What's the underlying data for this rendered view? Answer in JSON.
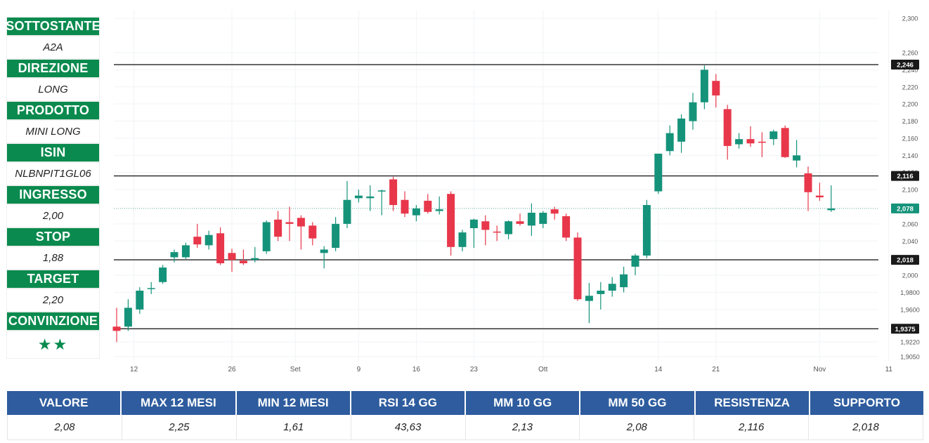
{
  "sidebar": {
    "fields": [
      {
        "label": "SOTTOSTANTE",
        "value": "A2A"
      },
      {
        "label": "DIREZIONE",
        "value": "LONG"
      },
      {
        "label": "PRODOTTO",
        "value": "MINI LONG"
      },
      {
        "label": "ISIN",
        "value": "NLBNPIT1GL06"
      },
      {
        "label": "INGRESSO",
        "value": "2,00"
      },
      {
        "label": "STOP",
        "value": "1,88"
      },
      {
        "label": "TARGET",
        "value": "2,20"
      },
      {
        "label": "CONVINZIONE",
        "value": "★★"
      }
    ]
  },
  "stats_table": {
    "headers": [
      "VALORE",
      "MAX 12 MESI",
      "MIN 12 MESI",
      "RSI 14 GG",
      "MM 10 GG",
      "MM 50 GG",
      "RESISTENZA",
      "SUPPORTO"
    ],
    "values": [
      "2,08",
      "2,25",
      "1,61",
      "43,63",
      "2,13",
      "2,08",
      "2,116",
      "2,018"
    ]
  },
  "colors": {
    "up": "#15937a",
    "down": "#e8374a",
    "header_green": "#0a8a4e",
    "header_blue": "#2e5c9e"
  },
  "chart_data": {
    "type": "candlestick",
    "x_tick_labels": [
      "12",
      "26",
      "Set",
      "9",
      "16",
      "23",
      "Ott",
      "14",
      "21",
      "Nov",
      "11"
    ],
    "y_tick_labels": [
      "2,300",
      "2,260",
      "2,240",
      "2,220",
      "2,200",
      "2,180",
      "2,160",
      "2,140",
      "2,120",
      "2,100",
      "2,060",
      "2,040",
      "2,000",
      "1,9800",
      "1,9600",
      "1,9220",
      "1,9050"
    ],
    "y_tick_values": [
      2.3,
      2.26,
      2.24,
      2.22,
      2.2,
      2.18,
      2.16,
      2.14,
      2.12,
      2.1,
      2.06,
      2.04,
      2.0,
      1.98,
      1.96,
      1.922,
      1.905
    ],
    "ylim": [
      1.9,
      2.31
    ],
    "horizontal_levels": [
      {
        "value": 2.246,
        "label": "2,246"
      },
      {
        "value": 2.116,
        "label": "2,116"
      },
      {
        "value": 2.018,
        "label": "2,018"
      },
      {
        "value": 1.9375,
        "label": "1,9375"
      }
    ],
    "last_price": {
      "value": 2.078,
      "label": "2,078"
    },
    "candles": [
      {
        "o": 1.94,
        "h": 1.962,
        "l": 1.922,
        "c": 1.935
      },
      {
        "o": 1.94,
        "h": 1.972,
        "l": 1.935,
        "c": 1.962
      },
      {
        "o": 1.96,
        "h": 1.986,
        "l": 1.955,
        "c": 1.982
      },
      {
        "o": 1.984,
        "h": 1.992,
        "l": 1.978,
        "c": 1.985
      },
      {
        "o": 1.992,
        "h": 2.012,
        "l": 1.99,
        "c": 2.009
      },
      {
        "o": 2.021,
        "h": 2.03,
        "l": 2.015,
        "c": 2.027
      },
      {
        "o": 2.021,
        "h": 2.038,
        "l": 2.019,
        "c": 2.035
      },
      {
        "o": 2.045,
        "h": 2.06,
        "l": 2.032,
        "c": 2.036
      },
      {
        "o": 2.035,
        "h": 2.052,
        "l": 2.03,
        "c": 2.047
      },
      {
        "o": 2.049,
        "h": 2.056,
        "l": 2.012,
        "c": 2.014
      },
      {
        "o": 2.026,
        "h": 2.031,
        "l": 2.004,
        "c": 2.018
      },
      {
        "o": 2.017,
        "h": 2.03,
        "l": 2.012,
        "c": 2.014
      },
      {
        "o": 2.018,
        "h": 2.033,
        "l": 2.015,
        "c": 2.02
      },
      {
        "o": 2.028,
        "h": 2.064,
        "l": 2.025,
        "c": 2.062
      },
      {
        "o": 2.065,
        "h": 2.075,
        "l": 2.04,
        "c": 2.045
      },
      {
        "o": 2.062,
        "h": 2.08,
        "l": 2.04,
        "c": 2.06
      },
      {
        "o": 2.067,
        "h": 2.07,
        "l": 2.03,
        "c": 2.057
      },
      {
        "o": 2.058,
        "h": 2.062,
        "l": 2.035,
        "c": 2.043
      },
      {
        "o": 2.026,
        "h": 2.034,
        "l": 2.008,
        "c": 2.03
      },
      {
        "o": 2.032,
        "h": 2.068,
        "l": 2.028,
        "c": 2.06
      },
      {
        "o": 2.06,
        "h": 2.11,
        "l": 2.055,
        "c": 2.088
      },
      {
        "o": 2.09,
        "h": 2.1,
        "l": 2.085,
        "c": 2.093
      },
      {
        "o": 2.09,
        "h": 2.105,
        "l": 2.075,
        "c": 2.092
      },
      {
        "o": 2.098,
        "h": 2.1,
        "l": 2.07,
        "c": 2.099
      },
      {
        "o": 2.112,
        "h": 2.115,
        "l": 2.075,
        "c": 2.082
      },
      {
        "o": 2.088,
        "h": 2.098,
        "l": 2.068,
        "c": 2.072
      },
      {
        "o": 2.07,
        "h": 2.082,
        "l": 2.063,
        "c": 2.078
      },
      {
        "o": 2.087,
        "h": 2.095,
        "l": 2.072,
        "c": 2.074
      },
      {
        "o": 2.075,
        "h": 2.092,
        "l": 2.071,
        "c": 2.077
      },
      {
        "o": 2.095,
        "h": 2.098,
        "l": 2.023,
        "c": 2.033
      },
      {
        "o": 2.033,
        "h": 2.053,
        "l": 2.028,
        "c": 2.05
      },
      {
        "o": 2.055,
        "h": 2.066,
        "l": 2.032,
        "c": 2.065
      },
      {
        "o": 2.063,
        "h": 2.07,
        "l": 2.035,
        "c": 2.053
      },
      {
        "o": 2.051,
        "h": 2.058,
        "l": 2.04,
        "c": 2.05
      },
      {
        "o": 2.048,
        "h": 2.064,
        "l": 2.042,
        "c": 2.063
      },
      {
        "o": 2.063,
        "h": 2.072,
        "l": 2.058,
        "c": 2.06
      },
      {
        "o": 2.058,
        "h": 2.084,
        "l": 2.046,
        "c": 2.073
      },
      {
        "o": 2.06,
        "h": 2.075,
        "l": 2.055,
        "c": 2.073
      },
      {
        "o": 2.077,
        "h": 2.08,
        "l": 2.065,
        "c": 2.072
      },
      {
        "o": 2.069,
        "h": 2.072,
        "l": 2.04,
        "c": 2.044
      },
      {
        "o": 2.044,
        "h": 2.05,
        "l": 1.97,
        "c": 1.972
      },
      {
        "o": 1.97,
        "h": 1.991,
        "l": 1.944,
        "c": 1.976
      },
      {
        "o": 1.978,
        "h": 1.992,
        "l": 1.96,
        "c": 1.982
      },
      {
        "o": 1.982,
        "h": 1.998,
        "l": 1.975,
        "c": 1.99
      },
      {
        "o": 1.986,
        "h": 2.01,
        "l": 1.98,
        "c": 2.001
      },
      {
        "o": 2.01,
        "h": 2.025,
        "l": 2.0,
        "c": 2.023
      },
      {
        "o": 2.023,
        "h": 2.088,
        "l": 2.02,
        "c": 2.082
      },
      {
        "o": 2.098,
        "h": 2.142,
        "l": 2.095,
        "c": 2.142
      },
      {
        "o": 2.145,
        "h": 2.175,
        "l": 2.14,
        "c": 2.166
      },
      {
        "o": 2.156,
        "h": 2.188,
        "l": 2.143,
        "c": 2.183
      },
      {
        "o": 2.18,
        "h": 2.213,
        "l": 2.17,
        "c": 2.202
      },
      {
        "o": 2.202,
        "h": 2.245,
        "l": 2.194,
        "c": 2.24
      },
      {
        "o": 2.227,
        "h": 2.235,
        "l": 2.196,
        "c": 2.21
      },
      {
        "o": 2.194,
        "h": 2.199,
        "l": 2.135,
        "c": 2.151
      },
      {
        "o": 2.153,
        "h": 2.166,
        "l": 2.148,
        "c": 2.159
      },
      {
        "o": 2.159,
        "h": 2.174,
        "l": 2.15,
        "c": 2.154
      },
      {
        "o": 2.156,
        "h": 2.167,
        "l": 2.138,
        "c": 2.155
      },
      {
        "o": 2.159,
        "h": 2.17,
        "l": 2.152,
        "c": 2.168
      },
      {
        "o": 2.172,
        "h": 2.175,
        "l": 2.137,
        "c": 2.138
      },
      {
        "o": 2.134,
        "h": 2.158,
        "l": 2.126,
        "c": 2.14
      },
      {
        "o": 2.119,
        "h": 2.127,
        "l": 2.075,
        "c": 2.097
      },
      {
        "o": 2.093,
        "h": 2.108,
        "l": 2.087,
        "c": 2.091
      },
      {
        "o": 2.076,
        "h": 2.105,
        "l": 2.074,
        "c": 2.078
      }
    ]
  }
}
